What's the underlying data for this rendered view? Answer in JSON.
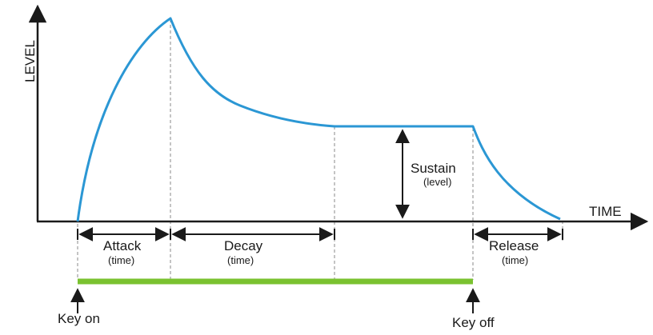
{
  "axes": {
    "y_label": "LEVEL",
    "x_label": "TIME"
  },
  "phases": {
    "attack": {
      "label": "Attack",
      "sub": "(time)"
    },
    "decay": {
      "label": "Decay",
      "sub": "(time)"
    },
    "sustain": {
      "label": "Sustain",
      "sub": "(level)"
    },
    "release": {
      "label": "Release",
      "sub": "(time)"
    }
  },
  "events": {
    "key_on": "Key on",
    "key_off": "Key off"
  },
  "colors": {
    "envelope": "#2b97d4",
    "gate_bar": "#7ac230",
    "ink": "#1a1a1a",
    "guide": "#8a8a8a"
  }
}
